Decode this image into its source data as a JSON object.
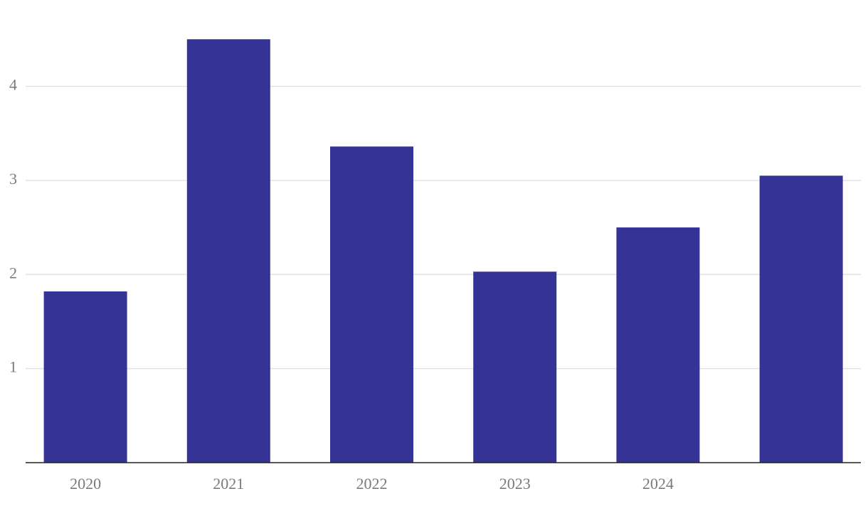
{
  "chart_data": {
    "type": "bar",
    "categories": [
      "2020",
      "2021",
      "2022",
      "2023",
      "2024",
      null
    ],
    "values": [
      1.82,
      4.5,
      3.36,
      2.03,
      2.5,
      3.05
    ],
    "color": "#353496",
    "ylim": [
      0,
      4.9
    ],
    "yticks": [
      1,
      2,
      3,
      4
    ],
    "grid": true
  }
}
